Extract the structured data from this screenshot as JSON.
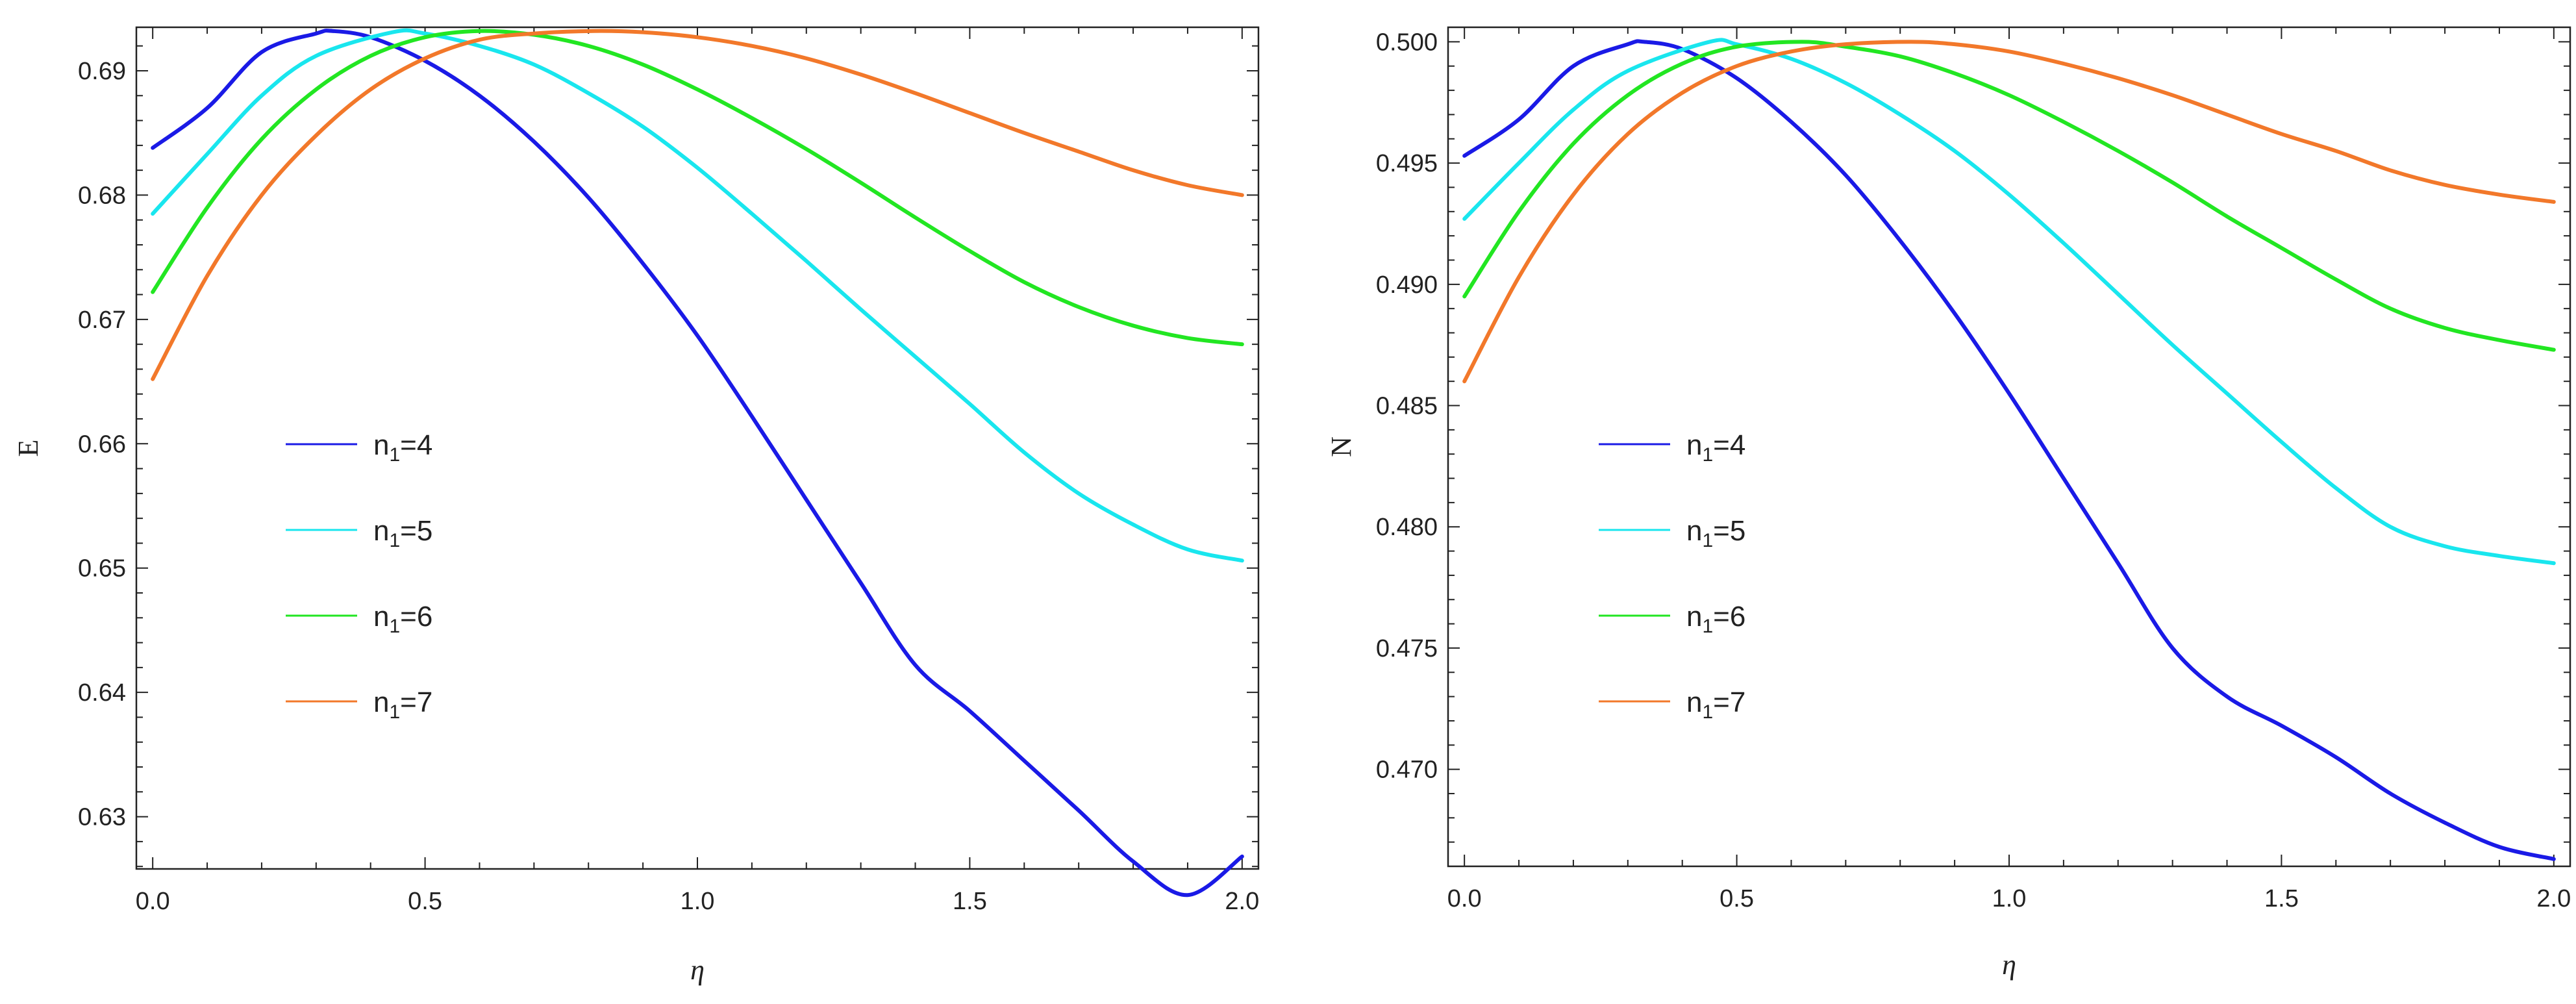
{
  "chart_data": [
    {
      "type": "line",
      "xlabel": "η",
      "ylabel": "E",
      "xlim": [
        -0.03,
        2.03
      ],
      "ylim": [
        0.6258,
        0.6935
      ],
      "xticks": [
        "0.0",
        "0.5",
        "1.0",
        "1.5",
        "2.0"
      ],
      "yticks": [
        "0.63",
        "0.64",
        "0.65",
        "0.66",
        "0.67",
        "0.68",
        "0.69"
      ],
      "grid": false,
      "legend_position": "middle-left",
      "series": [
        {
          "name": "n1=4",
          "label_main": "n",
          "label_sub": "1",
          "label_tail": "=4",
          "color": "#1a1ae6",
          "x": [
            0.0,
            0.1,
            0.2,
            0.3,
            0.33,
            0.4,
            0.5,
            0.6,
            0.7,
            0.8,
            0.9,
            1.0,
            1.1,
            1.2,
            1.3,
            1.4,
            1.5,
            1.6,
            1.7,
            1.8,
            1.9,
            2.0
          ],
          "y": [
            0.6838,
            0.687,
            0.6915,
            0.693,
            0.6932,
            0.6927,
            0.6908,
            0.688,
            0.6843,
            0.6798,
            0.6745,
            0.6687,
            0.6622,
            0.6555,
            0.6488,
            0.6422,
            0.6385,
            0.6345,
            0.6305,
            0.6264,
            0.6237,
            0.6268
          ]
        },
        {
          "name": "n1=5",
          "label_main": "n",
          "label_sub": "1",
          "label_tail": "=5",
          "color": "#19e6ee",
          "x": [
            0.0,
            0.1,
            0.2,
            0.3,
            0.44,
            0.5,
            0.6,
            0.7,
            0.8,
            0.9,
            1.0,
            1.1,
            1.2,
            1.3,
            1.4,
            1.5,
            1.6,
            1.7,
            1.8,
            1.9,
            2.0
          ],
          "y": [
            0.6785,
            0.6833,
            0.688,
            0.6912,
            0.6931,
            0.693,
            0.692,
            0.6905,
            0.6882,
            0.6855,
            0.6822,
            0.6785,
            0.6747,
            0.6708,
            0.667,
            0.6632,
            0.6593,
            0.656,
            0.6535,
            0.6515,
            0.6506
          ]
        },
        {
          "name": "n1=6",
          "label_main": "n",
          "label_sub": "1",
          "label_tail": "=6",
          "color": "#22e622",
          "x": [
            0.0,
            0.1,
            0.2,
            0.3,
            0.4,
            0.5,
            0.6,
            0.7,
            0.8,
            0.9,
            1.0,
            1.1,
            1.2,
            1.3,
            1.4,
            1.5,
            1.6,
            1.7,
            1.8,
            1.9,
            2.0
          ],
          "y": [
            0.6722,
            0.679,
            0.6845,
            0.6885,
            0.6912,
            0.6927,
            0.6932,
            0.6929,
            0.692,
            0.6905,
            0.6885,
            0.6862,
            0.6837,
            0.681,
            0.6782,
            0.6755,
            0.673,
            0.671,
            0.6695,
            0.6685,
            0.668
          ]
        },
        {
          "name": "n1=7",
          "label_main": "n",
          "label_sub": "1",
          "label_tail": "=7",
          "color": "#f2782a",
          "x": [
            0.0,
            0.1,
            0.2,
            0.3,
            0.4,
            0.5,
            0.6,
            0.7,
            0.81,
            0.9,
            1.0,
            1.1,
            1.2,
            1.3,
            1.4,
            1.5,
            1.6,
            1.7,
            1.8,
            1.9,
            2.0
          ],
          "y": [
            0.6652,
            0.6735,
            0.68,
            0.6848,
            0.6885,
            0.691,
            0.6925,
            0.693,
            0.6932,
            0.6931,
            0.6927,
            0.692,
            0.691,
            0.6897,
            0.6882,
            0.6866,
            0.685,
            0.6835,
            0.682,
            0.6808,
            0.68
          ]
        }
      ]
    },
    {
      "type": "line",
      "xlabel": "η",
      "ylabel": "N",
      "xlim": [
        -0.03,
        2.03
      ],
      "ylim": [
        0.466,
        0.5006
      ],
      "xticks": [
        "0.0",
        "0.5",
        "1.0",
        "1.5",
        "2.0"
      ],
      "yticks": [
        "0.470",
        "0.475",
        "0.480",
        "0.485",
        "0.490",
        "0.495",
        "0.500"
      ],
      "grid": false,
      "legend_position": "middle-left",
      "series": [
        {
          "name": "n1=4",
          "label_main": "n",
          "label_sub": "1",
          "label_tail": "=4",
          "color": "#1a1ae6",
          "x": [
            0.0,
            0.1,
            0.2,
            0.3,
            0.33,
            0.4,
            0.5,
            0.6,
            0.7,
            0.8,
            0.9,
            1.0,
            1.1,
            1.2,
            1.3,
            1.4,
            1.5,
            1.6,
            1.7,
            1.8,
            1.9,
            2.0
          ],
          "y": [
            0.4953,
            0.4968,
            0.499,
            0.4999,
            0.5,
            0.4997,
            0.4985,
            0.4967,
            0.4945,
            0.4918,
            0.4888,
            0.4855,
            0.482,
            0.4785,
            0.475,
            0.473,
            0.4718,
            0.4705,
            0.469,
            0.4678,
            0.4668,
            0.4663
          ]
        },
        {
          "name": "n1=5",
          "label_main": "n",
          "label_sub": "1",
          "label_tail": "=5",
          "color": "#19e6ee",
          "x": [
            0.0,
            0.1,
            0.2,
            0.3,
            0.45,
            0.5,
            0.6,
            0.7,
            0.8,
            0.9,
            1.0,
            1.1,
            1.2,
            1.3,
            1.4,
            1.5,
            1.6,
            1.7,
            1.8,
            1.9,
            2.0
          ],
          "y": [
            0.4927,
            0.495,
            0.4972,
            0.4988,
            0.5,
            0.4999,
            0.4993,
            0.4983,
            0.497,
            0.4955,
            0.4937,
            0.4917,
            0.4896,
            0.4875,
            0.4855,
            0.4835,
            0.4816,
            0.48,
            0.4792,
            0.4788,
            0.4785
          ]
        },
        {
          "name": "n1=6",
          "label_main": "n",
          "label_sub": "1",
          "label_tail": "=6",
          "color": "#22e622",
          "x": [
            0.0,
            0.1,
            0.2,
            0.3,
            0.4,
            0.5,
            0.62,
            0.7,
            0.8,
            0.9,
            1.0,
            1.1,
            1.2,
            1.3,
            1.4,
            1.5,
            1.6,
            1.7,
            1.8,
            1.9,
            2.0
          ],
          "y": [
            0.4895,
            0.493,
            0.4958,
            0.4978,
            0.4991,
            0.4998,
            0.5,
            0.4998,
            0.4994,
            0.4987,
            0.4978,
            0.4967,
            0.4955,
            0.4942,
            0.4928,
            0.4915,
            0.4902,
            0.489,
            0.4882,
            0.4877,
            0.4873
          ]
        },
        {
          "name": "n1=7",
          "label_main": "n",
          "label_sub": "1",
          "label_tail": "=7",
          "color": "#f2782a",
          "x": [
            0.0,
            0.1,
            0.2,
            0.3,
            0.4,
            0.5,
            0.6,
            0.7,
            0.82,
            0.9,
            1.0,
            1.1,
            1.2,
            1.3,
            1.4,
            1.5,
            1.6,
            1.7,
            1.8,
            1.9,
            2.0
          ],
          "y": [
            0.486,
            0.4903,
            0.4937,
            0.4962,
            0.4979,
            0.499,
            0.4996,
            0.4999,
            0.5,
            0.4999,
            0.4996,
            0.4991,
            0.4985,
            0.4978,
            0.497,
            0.4962,
            0.4955,
            0.4947,
            0.4941,
            0.4937,
            0.4934
          ]
        }
      ]
    }
  ]
}
